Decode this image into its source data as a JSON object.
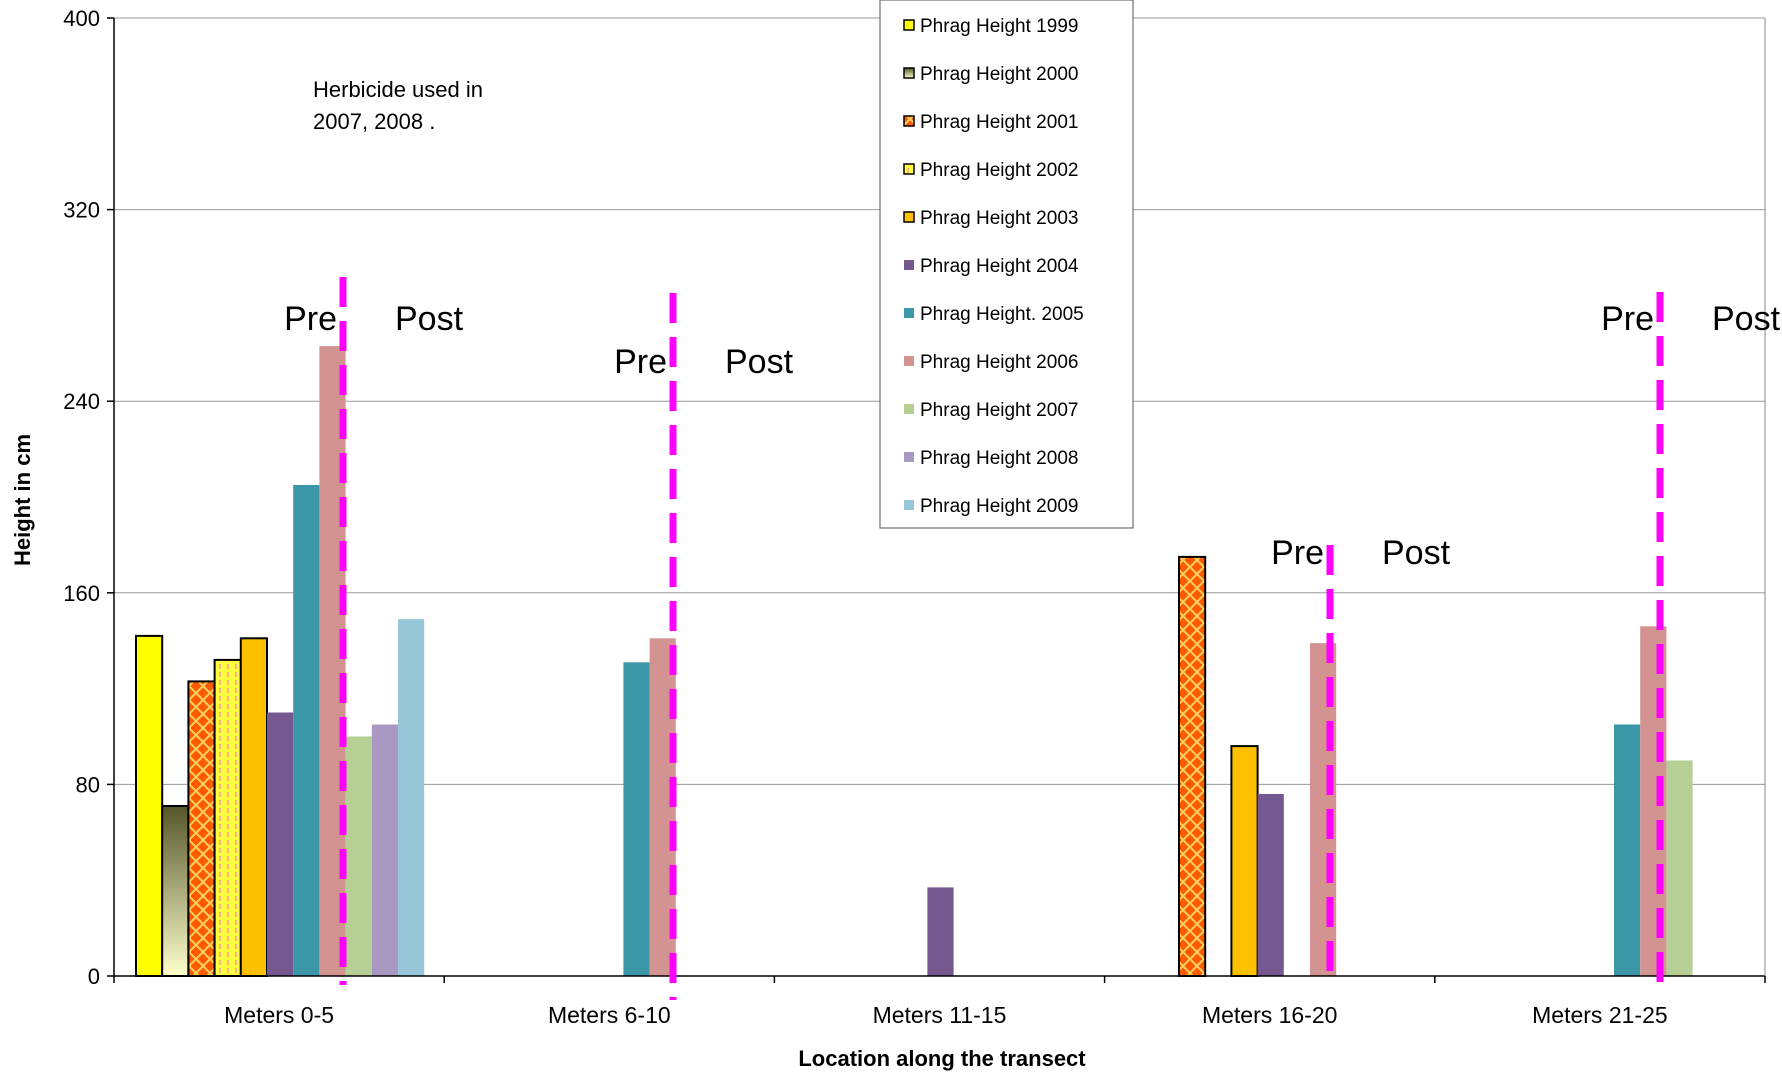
{
  "chart_data": {
    "type": "bar",
    "title": "",
    "xlabel": "Location along the transect",
    "ylabel": "Height in cm",
    "ylim": [
      0,
      400
    ],
    "yticks": [
      "0",
      "80",
      "160",
      "240",
      "320",
      "400"
    ],
    "grid": true,
    "legend_position": "top-center",
    "categories": [
      "Meters  0-5",
      "Meters  6-10",
      "Meters  11-15",
      "Meters  16-20",
      "Meters  21-25"
    ],
    "series": [
      {
        "name": "Phrag Height 1999",
        "color": "#ffff00",
        "values": [
          142,
          0,
          0,
          0,
          0
        ]
      },
      {
        "name": "Phrag Height 2000",
        "color": "#6b6b3a",
        "values": [
          71,
          0,
          0,
          0,
          0
        ]
      },
      {
        "name": "Phrag Height 2001",
        "color": "#ff6600",
        "values": [
          123,
          0,
          0,
          175,
          0
        ]
      },
      {
        "name": "Phrag Height 2002",
        "color": "#ffff33",
        "values": [
          132,
          0,
          0,
          0,
          0
        ]
      },
      {
        "name": "Phrag Height 2003",
        "color": "#ffc000",
        "values": [
          141,
          0,
          0,
          96,
          0
        ]
      },
      {
        "name": "Phrag Height 2004",
        "color": "#765891",
        "values": [
          110,
          0,
          37,
          76,
          0
        ]
      },
      {
        "name": "Phrag Height. 2005",
        "color": "#3b96a8",
        "values": [
          205,
          131,
          0,
          0,
          105
        ]
      },
      {
        "name": "Phrag Height 2006",
        "color": "#d39391",
        "values": [
          263,
          141,
          0,
          139,
          146
        ]
      },
      {
        "name": "Phrag Height 2007",
        "color": "#b5cf95",
        "values": [
          100,
          0,
          0,
          0,
          90
        ]
      },
      {
        "name": "Phrag Height 2008",
        "color": "#a898c2",
        "values": [
          105,
          0,
          0,
          0,
          0
        ]
      },
      {
        "name": "Phrag Height 2009",
        "color": "#96c6d8",
        "values": [
          149,
          0,
          0,
          0,
          0
        ]
      }
    ],
    "annotations": {
      "note_lines": [
        "Herbicide used in",
        "2007, 2008 ."
      ],
      "pre_label": "Pre",
      "post_label": "Post",
      "divider_color": "#ff00ff"
    }
  }
}
